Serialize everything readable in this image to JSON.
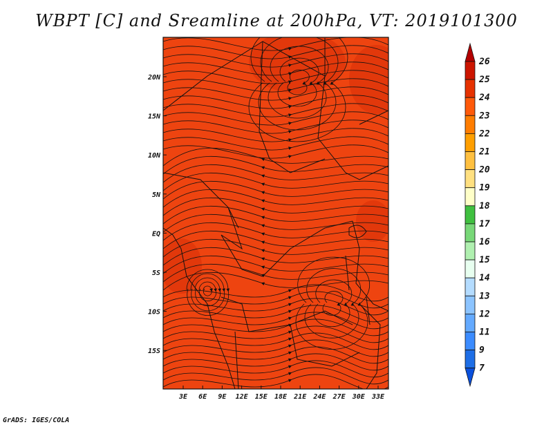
{
  "title": "WBPT [C] and Sreamline at 200hPa, VT: 2019101300",
  "footer": "GrADS: IGES/COLA",
  "map": {
    "field_fill": "#ee4410",
    "warm_patch": "#d83008",
    "lon_labels": [
      "3E",
      "6E",
      "9E",
      "12E",
      "15E",
      "18E",
      "21E",
      "24E",
      "27E",
      "30E",
      "33E"
    ],
    "lat_labels": [
      "20N",
      "15N",
      "10N",
      "5N",
      "EQ",
      "5S",
      "10S",
      "15S"
    ]
  },
  "colorbar": {
    "labels": [
      "26",
      "25",
      "24",
      "23",
      "22",
      "21",
      "20",
      "19",
      "18",
      "17",
      "16",
      "15",
      "14",
      "13",
      "12",
      "11",
      "9",
      "7"
    ],
    "colors": [
      "#b40000",
      "#cc1500",
      "#e63200",
      "#ff5a0a",
      "#ff7d00",
      "#ff9f00",
      "#ffc040",
      "#ffe080",
      "#ffffc8",
      "#40c040",
      "#78d878",
      "#b0f0b0",
      "#e8fff0",
      "#b4dcff",
      "#8cc4ff",
      "#64aaff",
      "#3c8cff",
      "#1e6ee6",
      "#0a50dc"
    ]
  }
}
